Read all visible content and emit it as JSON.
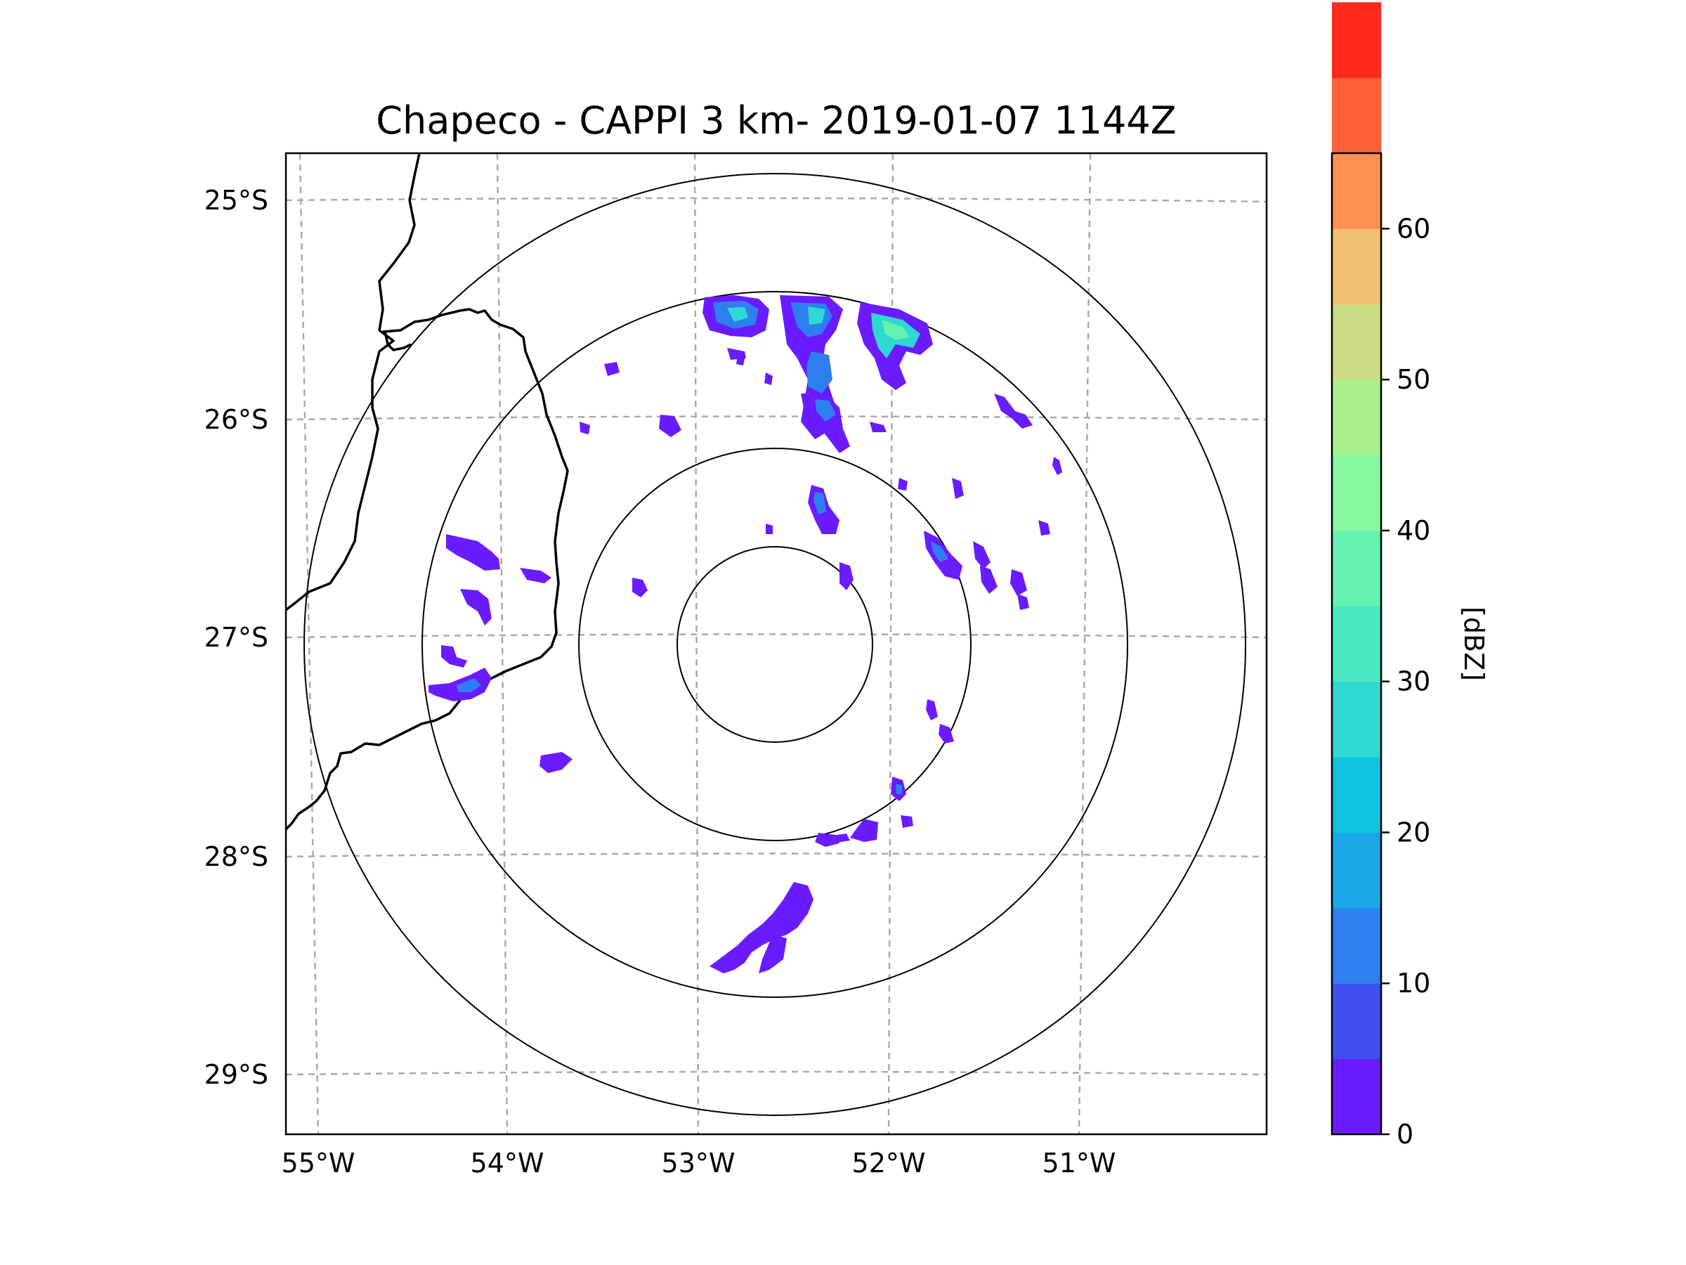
{
  "title": "Chapeco - CAPPI 3 km- 2019-01-07 1144Z",
  "latitude_ticks": [
    "25°S",
    "26°S",
    "27°S",
    "28°S",
    "29°S"
  ],
  "longitude_ticks": [
    "55°W",
    "54°W",
    "53°W",
    "52°W",
    "51°W"
  ],
  "colorbar": {
    "label": "[dBZ]",
    "ticks": [
      "0",
      "10",
      "20",
      "30",
      "40",
      "50",
      "60"
    ],
    "colors": [
      "#6a1bff",
      "#4050f0",
      "#2e7ff0",
      "#1aa8e8",
      "#0ec3e0",
      "#2fd8d0",
      "#4ae8c0",
      "#64f2b0",
      "#86f7a0",
      "#a8f08e",
      "#ccdc84",
      "#f0c070",
      "#ff9050",
      "#ff6038",
      "#ff2a1c"
    ]
  },
  "map": {
    "radar_site": "Chapeco",
    "range_rings": 4,
    "colors": {
      "gridline": "#aaaaaa",
      "border": "#000000",
      "echo_weak": "#6a1bff"
    }
  }
}
